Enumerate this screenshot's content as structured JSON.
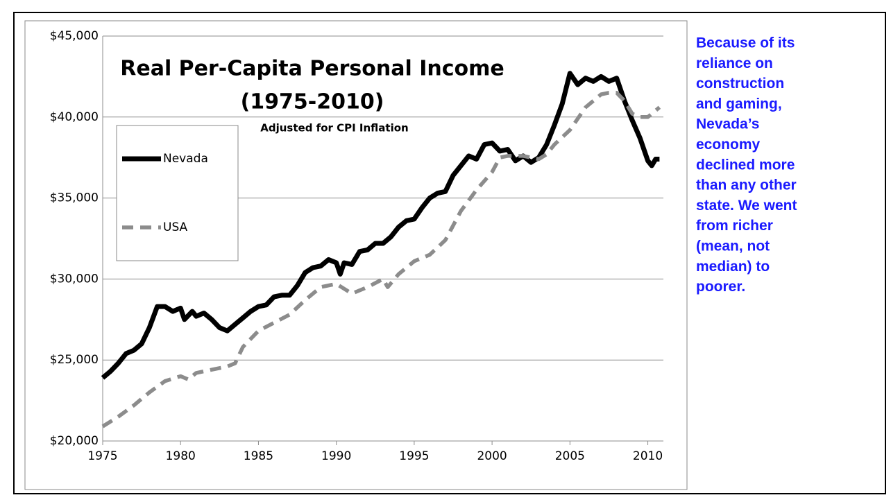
{
  "chart_data": {
    "type": "line",
    "title": [
      "Real Per-Capita Personal Income",
      "(1975-2010)"
    ],
    "subtitle": "Adjusted for CPI Inflation",
    "xlim": [
      1975,
      2011
    ],
    "xticks": [
      1975,
      1980,
      1985,
      1990,
      1995,
      2000,
      2005,
      2010
    ],
    "ylim": [
      20000,
      45000
    ],
    "yticks": [
      {
        "value": 20000,
        "label": "$20,000"
      },
      {
        "value": 25000,
        "label": "$25,000"
      },
      {
        "value": 30000,
        "label": "$30,000"
      },
      {
        "value": 35000,
        "label": "$35,000"
      },
      {
        "value": 40000,
        "label": "$40,000"
      },
      {
        "value": 45000,
        "label": "$45,000"
      }
    ],
    "grid": true,
    "series": [
      {
        "name": "Nevada",
        "color": "#000000",
        "dashed": false,
        "x": [
          1975,
          1975.5,
          1976,
          1976.5,
          1977,
          1977.5,
          1978,
          1978.5,
          1979,
          1979.5,
          1980,
          1980.25,
          1980.75,
          1981,
          1981.5,
          1982,
          1982.5,
          1983,
          1983.5,
          1984,
          1984.5,
          1985,
          1985.5,
          1986,
          1986.5,
          1987,
          1987.5,
          1988,
          1988.5,
          1989,
          1989.5,
          1990,
          1990.25,
          1990.5,
          1991,
          1991.5,
          1992,
          1992.5,
          1993,
          1993.5,
          1994,
          1994.5,
          1995,
          1995.5,
          1996,
          1996.5,
          1997,
          1997.5,
          1998,
          1998.5,
          1999,
          1999.5,
          2000,
          2000.5,
          2001,
          2001.5,
          2002,
          2002.5,
          2003,
          2003.5,
          2004,
          2004.5,
          2005,
          2005.5,
          2006,
          2006.5,
          2007,
          2007.5,
          2008,
          2008.5,
          2009,
          2009.5,
          2010,
          2010.25,
          2010.5,
          2010.75
        ],
        "values": [
          23900,
          24300,
          24800,
          25400,
          25600,
          26000,
          27000,
          28300,
          28300,
          28000,
          28200,
          27500,
          28000,
          27700,
          27900,
          27500,
          27000,
          26800,
          27200,
          27600,
          28000,
          28300,
          28400,
          28900,
          29000,
          29000,
          29600,
          30400,
          30700,
          30800,
          31200,
          31000,
          30300,
          31000,
          30900,
          31700,
          31800,
          32200,
          32200,
          32600,
          33200,
          33600,
          33700,
          34400,
          35000,
          35300,
          35400,
          36400,
          37000,
          37600,
          37400,
          38300,
          38400,
          37900,
          38000,
          37300,
          37600,
          37200,
          37500,
          38300,
          39500,
          40800,
          42700,
          42000,
          42400,
          42200,
          42500,
          42200,
          42400,
          41000,
          39800,
          38700,
          37300,
          37000,
          37400,
          37400
        ]
      },
      {
        "name": "USA",
        "color": "#8c8c8c",
        "dashed": true,
        "x": [
          1975,
          1976,
          1977,
          1978,
          1979,
          1980,
          1980.5,
          1981,
          1982,
          1983,
          1983.5,
          1984,
          1985,
          1986,
          1987,
          1988,
          1989,
          1990,
          1991,
          1992,
          1993,
          1993.3,
          1994,
          1995,
          1996,
          1997,
          1998,
          1999,
          2000,
          2000.5,
          2001,
          2002,
          2003,
          2003.5,
          2004,
          2005,
          2006,
          2007,
          2007.5,
          2008,
          2008.5,
          2009,
          2009.5,
          2010,
          2010.75
        ],
        "values": [
          20900,
          21500,
          22200,
          23000,
          23700,
          24000,
          23800,
          24200,
          24400,
          24600,
          24800,
          25800,
          26800,
          27300,
          27800,
          28700,
          29500,
          29700,
          29100,
          29500,
          30000,
          29500,
          30300,
          31100,
          31500,
          32400,
          34200,
          35500,
          36600,
          37500,
          37600,
          37600,
          37400,
          37700,
          38300,
          39200,
          40600,
          41400,
          41500,
          41500,
          41000,
          40200,
          40000,
          40000,
          40600
        ]
      }
    ],
    "note": [
      "Because of its",
      "reliance on",
      "construction",
      "and gaming,",
      "Nevada’s",
      "economy",
      "declined more",
      "than any other",
      "state.  We went",
      "from richer",
      "(mean, not",
      "median) to",
      "poorer."
    ]
  }
}
